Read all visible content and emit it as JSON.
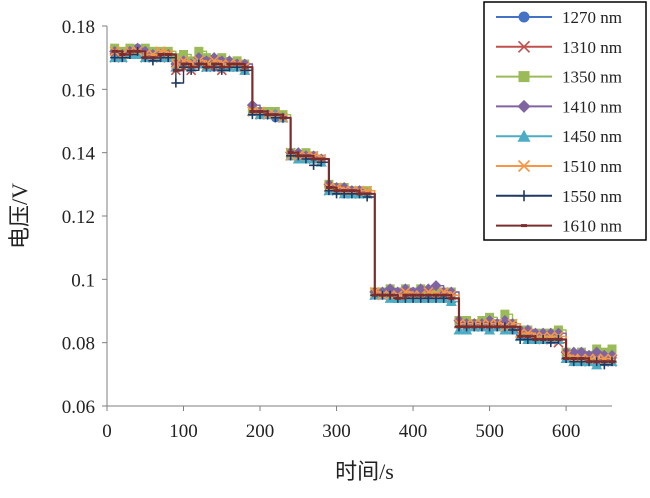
{
  "chart_data": {
    "type": "line",
    "xlabel": "时间/s",
    "ylabel": "电压/V",
    "xlim": [
      0,
      660
    ],
    "ylim": [
      0.06,
      0.18
    ],
    "xticks": [
      "0",
      "100",
      "200",
      "300",
      "400",
      "500",
      "600"
    ],
    "yticks": [
      "0.06",
      "0.08",
      "0.1",
      "0.12",
      "0.14",
      "0.16",
      "0.18"
    ],
    "grid": false,
    "legend_position": "top-right",
    "x": [
      10,
      20,
      30,
      40,
      50,
      60,
      70,
      80,
      90,
      100,
      110,
      120,
      130,
      140,
      150,
      160,
      170,
      180,
      190,
      200,
      210,
      220,
      230,
      240,
      250,
      260,
      270,
      280,
      290,
      300,
      310,
      320,
      330,
      340,
      350,
      360,
      370,
      380,
      390,
      400,
      410,
      420,
      430,
      440,
      450,
      460,
      470,
      480,
      490,
      500,
      510,
      520,
      530,
      540,
      550,
      560,
      570,
      580,
      590,
      600,
      610,
      620,
      630,
      640,
      650,
      660
    ],
    "series": [
      {
        "name": "1270 nm",
        "color": "#4472c4",
        "marker": "circle",
        "values": [
          0.171,
          0.171,
          0.172,
          0.173,
          0.171,
          0.17,
          0.171,
          0.171,
          0.168,
          0.168,
          0.167,
          0.168,
          0.168,
          0.167,
          0.168,
          0.168,
          0.168,
          0.167,
          0.153,
          0.152,
          0.153,
          0.151,
          0.151,
          0.139,
          0.139,
          0.138,
          0.138,
          0.137,
          0.129,
          0.128,
          0.128,
          0.128,
          0.127,
          0.127,
          0.095,
          0.095,
          0.095,
          0.094,
          0.095,
          0.095,
          0.095,
          0.095,
          0.095,
          0.095,
          0.095,
          0.086,
          0.085,
          0.086,
          0.085,
          0.085,
          0.085,
          0.085,
          0.085,
          0.082,
          0.082,
          0.082,
          0.081,
          0.081,
          0.081,
          0.075,
          0.075,
          0.074,
          0.074,
          0.074,
          0.074,
          0.074
        ]
      },
      {
        "name": "1310 nm",
        "color": "#c0504d",
        "marker": "x",
        "values": [
          0.17,
          0.17,
          0.172,
          0.172,
          0.17,
          0.17,
          0.17,
          0.17,
          0.166,
          0.167,
          0.166,
          0.168,
          0.167,
          0.167,
          0.166,
          0.168,
          0.167,
          0.167,
          0.153,
          0.152,
          0.152,
          0.152,
          0.151,
          0.14,
          0.139,
          0.139,
          0.138,
          0.138,
          0.128,
          0.128,
          0.128,
          0.127,
          0.127,
          0.127,
          0.095,
          0.095,
          0.095,
          0.095,
          0.095,
          0.095,
          0.095,
          0.095,
          0.095,
          0.095,
          0.094,
          0.086,
          0.086,
          0.085,
          0.085,
          0.085,
          0.085,
          0.085,
          0.085,
          0.082,
          0.082,
          0.082,
          0.081,
          0.081,
          0.08,
          0.076,
          0.075,
          0.075,
          0.074,
          0.074,
          0.074,
          0.074
        ]
      },
      {
        "name": "1350 nm",
        "color": "#9bbb59",
        "marker": "square",
        "values": [
          0.173,
          0.172,
          0.173,
          0.172,
          0.173,
          0.172,
          0.172,
          0.172,
          0.17,
          0.171,
          0.169,
          0.172,
          0.17,
          0.169,
          0.17,
          0.168,
          0.169,
          0.168,
          0.154,
          0.153,
          0.153,
          0.153,
          0.152,
          0.14,
          0.139,
          0.14,
          0.139,
          0.138,
          0.13,
          0.129,
          0.129,
          0.128,
          0.128,
          0.128,
          0.096,
          0.096,
          0.097,
          0.096,
          0.097,
          0.096,
          0.097,
          0.096,
          0.097,
          0.096,
          0.096,
          0.087,
          0.087,
          0.086,
          0.087,
          0.088,
          0.086,
          0.089,
          0.086,
          0.084,
          0.084,
          0.083,
          0.083,
          0.083,
          0.084,
          0.077,
          0.076,
          0.077,
          0.076,
          0.078,
          0.077,
          0.078
        ]
      },
      {
        "name": "1410 nm",
        "color": "#8064a2",
        "marker": "diamond",
        "values": [
          0.172,
          0.171,
          0.172,
          0.173,
          0.172,
          0.171,
          0.171,
          0.171,
          0.168,
          0.169,
          0.168,
          0.17,
          0.169,
          0.17,
          0.169,
          0.169,
          0.168,
          0.168,
          0.155,
          0.153,
          0.152,
          0.152,
          0.151,
          0.14,
          0.14,
          0.139,
          0.139,
          0.138,
          0.13,
          0.129,
          0.129,
          0.128,
          0.128,
          0.127,
          0.096,
          0.096,
          0.097,
          0.096,
          0.097,
          0.096,
          0.097,
          0.097,
          0.098,
          0.096,
          0.096,
          0.087,
          0.086,
          0.086,
          0.086,
          0.087,
          0.086,
          0.087,
          0.086,
          0.084,
          0.084,
          0.083,
          0.083,
          0.083,
          0.083,
          0.077,
          0.077,
          0.077,
          0.076,
          0.077,
          0.076,
          0.076
        ]
      },
      {
        "name": "1450 nm",
        "color": "#4bacc6",
        "marker": "triangle",
        "values": [
          0.17,
          0.17,
          0.171,
          0.171,
          0.17,
          0.17,
          0.17,
          0.17,
          0.167,
          0.168,
          0.167,
          0.168,
          0.167,
          0.168,
          0.167,
          0.167,
          0.167,
          0.166,
          0.153,
          0.152,
          0.152,
          0.152,
          0.151,
          0.139,
          0.138,
          0.138,
          0.138,
          0.137,
          0.128,
          0.128,
          0.127,
          0.127,
          0.127,
          0.127,
          0.095,
          0.095,
          0.094,
          0.094,
          0.094,
          0.094,
          0.094,
          0.094,
          0.094,
          0.094,
          0.093,
          0.084,
          0.084,
          0.085,
          0.085,
          0.084,
          0.085,
          0.084,
          0.084,
          0.082,
          0.081,
          0.081,
          0.081,
          0.081,
          0.081,
          0.075,
          0.074,
          0.074,
          0.074,
          0.073,
          0.074,
          0.074
        ]
      },
      {
        "name": "1510 nm",
        "color": "#f79646",
        "marker": "x",
        "values": [
          0.172,
          0.171,
          0.172,
          0.172,
          0.171,
          0.171,
          0.172,
          0.171,
          0.168,
          0.169,
          0.168,
          0.169,
          0.168,
          0.169,
          0.168,
          0.168,
          0.168,
          0.167,
          0.153,
          0.153,
          0.152,
          0.152,
          0.151,
          0.139,
          0.139,
          0.139,
          0.139,
          0.138,
          0.129,
          0.129,
          0.128,
          0.128,
          0.128,
          0.128,
          0.096,
          0.095,
          0.095,
          0.095,
          0.096,
          0.095,
          0.095,
          0.096,
          0.095,
          0.096,
          0.095,
          0.086,
          0.086,
          0.086,
          0.086,
          0.086,
          0.086,
          0.085,
          0.086,
          0.083,
          0.083,
          0.082,
          0.082,
          0.082,
          0.082,
          0.076,
          0.075,
          0.075,
          0.075,
          0.075,
          0.075,
          0.075
        ]
      },
      {
        "name": "1550 nm",
        "color": "#1f3864",
        "marker": "plus",
        "values": [
          0.17,
          0.17,
          0.171,
          0.172,
          0.17,
          0.169,
          0.17,
          0.17,
          0.162,
          0.167,
          0.166,
          0.168,
          0.167,
          0.167,
          0.166,
          0.167,
          0.167,
          0.166,
          0.152,
          0.152,
          0.152,
          0.151,
          0.151,
          0.139,
          0.139,
          0.138,
          0.136,
          0.137,
          0.128,
          0.127,
          0.127,
          0.127,
          0.127,
          0.126,
          0.095,
          0.095,
          0.095,
          0.094,
          0.094,
          0.094,
          0.094,
          0.094,
          0.094,
          0.094,
          0.094,
          0.085,
          0.085,
          0.085,
          0.085,
          0.085,
          0.085,
          0.085,
          0.084,
          0.081,
          0.081,
          0.081,
          0.081,
          0.08,
          0.081,
          0.075,
          0.074,
          0.074,
          0.074,
          0.074,
          0.073,
          0.074
        ]
      },
      {
        "name": "1610 nm",
        "color": "#7b2c2c",
        "marker": "dash",
        "values": [
          0.172,
          0.171,
          0.172,
          0.172,
          0.17,
          0.17,
          0.171,
          0.171,
          0.166,
          0.168,
          0.167,
          0.168,
          0.167,
          0.168,
          0.167,
          0.168,
          0.168,
          0.167,
          0.153,
          0.153,
          0.152,
          0.152,
          0.151,
          0.14,
          0.139,
          0.139,
          0.138,
          0.138,
          0.129,
          0.128,
          0.128,
          0.128,
          0.127,
          0.127,
          0.095,
          0.095,
          0.095,
          0.094,
          0.095,
          0.095,
          0.095,
          0.095,
          0.095,
          0.095,
          0.094,
          0.085,
          0.085,
          0.085,
          0.085,
          0.085,
          0.085,
          0.085,
          0.085,
          0.082,
          0.082,
          0.081,
          0.081,
          0.081,
          0.081,
          0.075,
          0.075,
          0.075,
          0.074,
          0.074,
          0.074,
          0.074
        ]
      }
    ]
  }
}
